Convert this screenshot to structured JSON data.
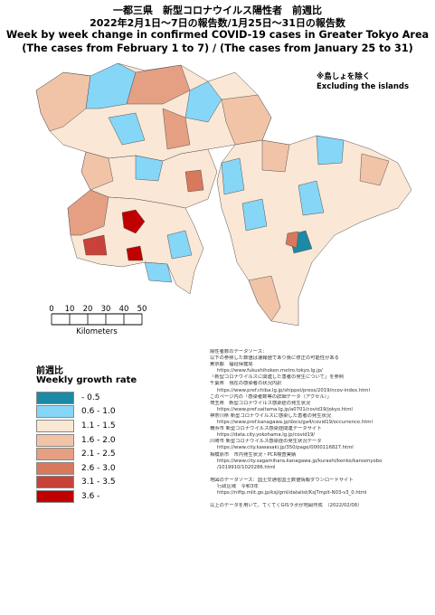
{
  "header": {
    "title_ja": "一都三県　新型コロナウイルス陽性者　前週比",
    "subtitle_ja": "2022年2月1日〜7日の報告数/1月25日〜31日の報告数",
    "title_en": "Week by week change in confirmed COVID-19 cases in Greater Tokyo Area",
    "subtitle_en": "(The cases from February 1 to 7) / (The cases from January 25 to 31)"
  },
  "note": {
    "ja": "※島しょを除く",
    "en": "Excluding the islands"
  },
  "scale": {
    "ticks": [
      0,
      10,
      20,
      30,
      40,
      50
    ],
    "unit": "Kilometers"
  },
  "legend": {
    "title_ja": "前週比",
    "title_en": "Weekly growth rate",
    "items": [
      {
        "label": "- 0.5",
        "color": "#1b8aa6"
      },
      {
        "label": "0.6 - 1.0",
        "color": "#86d6f7"
      },
      {
        "label": "1.1 - 1.5",
        "color": "#fbe7d5"
      },
      {
        "label": "1.6 - 2.0",
        "color": "#f1c4a8"
      },
      {
        "label": "2.1 - 2.5",
        "color": "#e5a084"
      },
      {
        "label": "2.6 - 3.0",
        "color": "#d8785c"
      },
      {
        "label": "3.1 - 3.5",
        "color": "#c8423a"
      },
      {
        "label": "3.6 -",
        "color": "#c00000"
      }
    ]
  },
  "sources": {
    "case_lines": [
      "陽性者数のデータソース：",
      "以下の参照した数値は速報値であり後に修正の可能性がある",
      "東京都　福祉保健局",
      "https://www.fukushihoken.metro.tokyo.lg.jp/",
      "「新型コロナウイルスに関連した患者の発生について」を参照",
      "千葉県　現在の感染者の状況内訳",
      "https://www.pref.chiba.lg.jp/shippei/press/2019/ncov-index.html",
      "このページ内の「感染者数等の詳細データ（アクセル）」",
      "埼玉県　新型コロナウイルス感染症の発生状況",
      "https://www.pref.saitama.lg.jp/a0701/covid19/jokyo.html",
      "神奈川県 新型コロナウイルスに感染した患者の発生状況",
      "https://www.pref.kanagawa.jp/docs/ga4/covid19/occurrence.html",
      "横浜市 新型コロナウイルス感染症関連データサイト",
      "https://data.city.yokohama.lg.jp/covid19/",
      "川崎市 新型コロナウイルス感染症の発生状況データ",
      "https://www.city.kawasaki.jp/350/page/0000116827.html",
      "相模原市　市内発生状況・PCR検査実績",
      "https://www.city.sagamihara.kanagawa.jp/kurashi/kenko/kansenyobo",
      "/1019910/1020286.html"
    ],
    "map_lines": [
      "地図のデータソース：国土交通省国土数値情報ダウンロードサイト",
      "行政区域　令和3年",
      "https://nlftp.mlit.go.jp/ksj/gml/datalist/KsjTmplt-N03-v3_0.html"
    ],
    "credit": "以上のデータを用いて、てくてくGISラボが地図作成　（2022/02/08）"
  }
}
